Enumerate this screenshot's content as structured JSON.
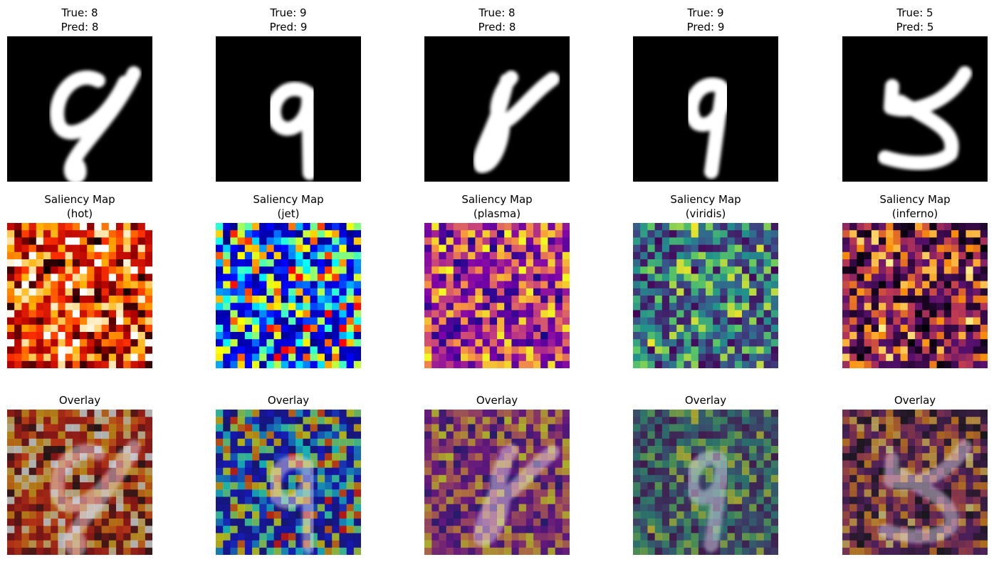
{
  "rows": [
    [
      [
        "True: 8",
        "Pred: 8"
      ],
      [
        "True: 9",
        "Pred: 9"
      ],
      [
        "True: 8",
        "Pred: 8"
      ],
      [
        "True: 9",
        "Pred: 9"
      ],
      [
        "True: 5",
        "Pred: 5"
      ]
    ],
    [
      [
        "Saliency Map",
        "(hot)"
      ],
      [
        "Saliency Map",
        "(jet)"
      ],
      [
        "Saliency Map",
        "(plasma)"
      ],
      [
        "Saliency Map",
        "(viridis)"
      ],
      [
        "Saliency Map",
        "(inferno)"
      ]
    ],
    [
      [
        "Overlay"
      ],
      [
        "Overlay"
      ],
      [
        "Overlay"
      ],
      [
        "Overlay"
      ],
      [
        "Overlay"
      ]
    ]
  ]
}
